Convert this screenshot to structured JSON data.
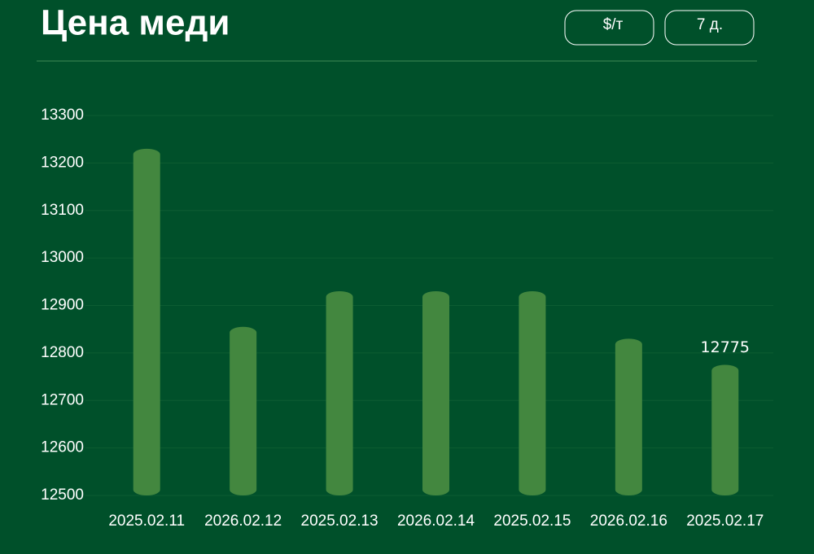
{
  "chart_data": {
    "type": "bar",
    "title": "Цена меди",
    "buttons": [
      "$/т",
      "7 д."
    ],
    "categories": [
      "2025.02.11",
      "2026.02.12",
      "2025.02.13",
      "2026.02.14",
      "2025.02.15",
      "2026.02.16",
      "2025.02.17"
    ],
    "values": [
      13230,
      12855,
      12930,
      12930,
      12930,
      12830,
      12775
    ],
    "value_labels": [
      null,
      null,
      null,
      null,
      null,
      null,
      "12775"
    ],
    "color": "#43873f",
    "ylim": [
      12500,
      13300
    ],
    "yticks": [
      12500,
      12600,
      12700,
      12800,
      12900,
      13000,
      13100,
      13200,
      13300
    ],
    "grid": true
  }
}
